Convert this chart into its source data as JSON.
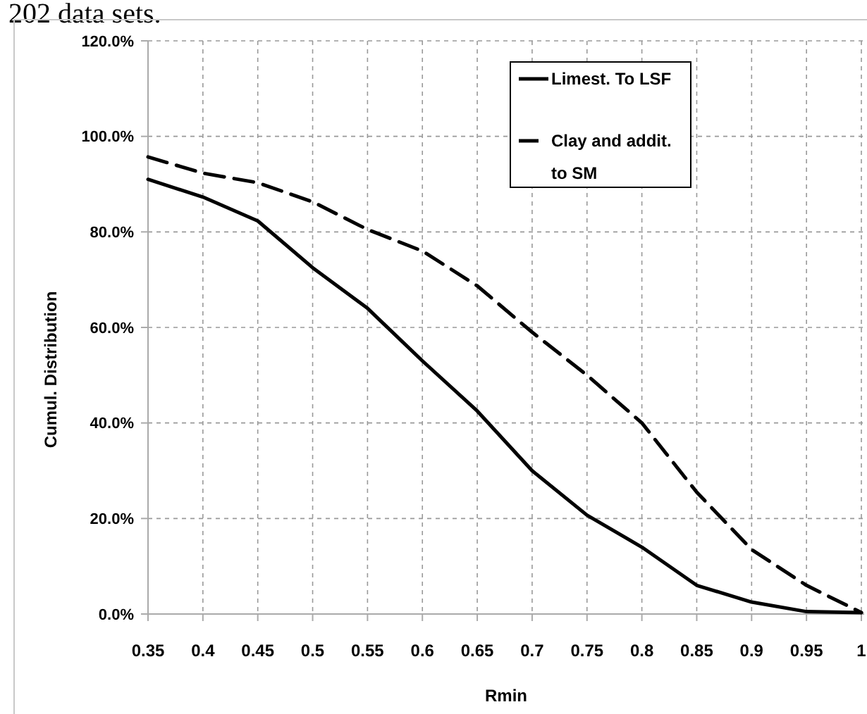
{
  "chart_data": {
    "type": "line",
    "xlabel": "Rmin",
    "ylabel": "Cumul. Distribution",
    "annotations": [
      "202 data sets."
    ],
    "categories": [
      "0.35",
      "0.4",
      "0.45",
      "0.5",
      "0.55",
      "0.6",
      "0.65",
      "0.7",
      "0.75",
      "0.8",
      "0.85",
      "0.9",
      "0.95",
      "1"
    ],
    "series": [
      {
        "name": "Limest. To LSF",
        "color": "#000000",
        "line_style": "solid",
        "values": [
          91,
          87.3,
          82.3,
          72.5,
          64,
          53,
          42.5,
          30,
          20.7,
          14,
          6,
          2.5,
          0.5,
          0.3
        ]
      },
      {
        "name": "Clay and addit. to SM",
        "color": "#000000",
        "line_style": "dashed",
        "values": [
          95.7,
          92.3,
          90.3,
          86.3,
          80.5,
          76,
          68.7,
          59,
          50,
          40,
          25.5,
          13.5,
          6,
          0.3
        ]
      }
    ],
    "ylim": [
      0,
      120
    ],
    "yticks": [
      {
        "value": 0,
        "label": "0.0%"
      },
      {
        "value": 20,
        "label": "20.0%"
      },
      {
        "value": 40,
        "label": "40.0%"
      },
      {
        "value": 60,
        "label": "60.0%"
      },
      {
        "value": 80,
        "label": "80.0%"
      },
      {
        "value": 100,
        "label": "100.0%"
      },
      {
        "value": 120,
        "label": "120.0%"
      }
    ],
    "grid": true,
    "legend": "top"
  }
}
